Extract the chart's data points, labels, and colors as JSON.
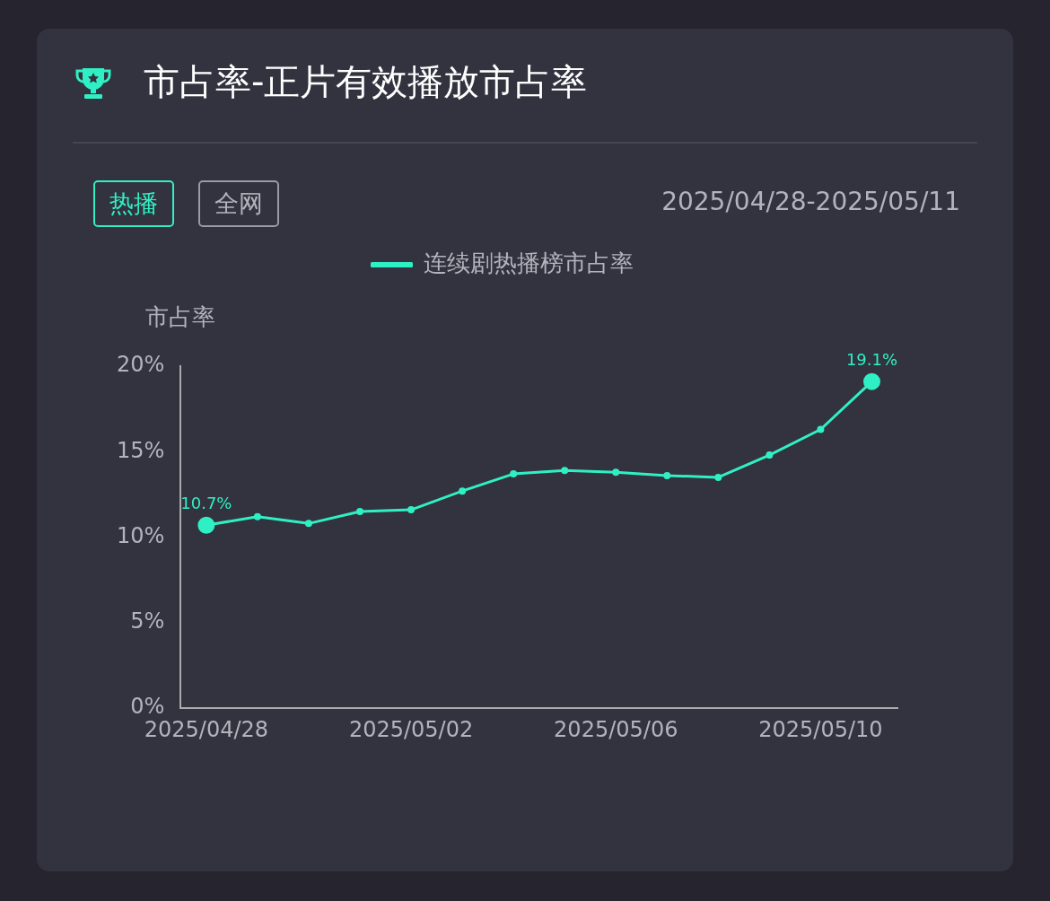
{
  "chart_data": {
    "type": "line",
    "title": "市占率-正片有效播放市占率",
    "ylabel": "市占率",
    "annotations": [
      "热播",
      "全网",
      "2025/04/28-2025/05/11"
    ],
    "categories": [
      "2025/04/28",
      null,
      null,
      null,
      "2025/05/02",
      null,
      null,
      null,
      "2025/05/06",
      null,
      null,
      null,
      "2025/05/10",
      null
    ],
    "series": [
      {
        "name": "连续剧热播榜市占率",
        "color": "#2ff0c4",
        "values": [
          10.7,
          11.2,
          10.8,
          11.5,
          11.6,
          12.7,
          13.7,
          13.9,
          13.8,
          13.6,
          13.5,
          14.8,
          16.3,
          19.1
        ],
        "value_labels": [
          "10.7%",
          null,
          null,
          null,
          null,
          null,
          null,
          null,
          null,
          null,
          null,
          null,
          null,
          "19.1%"
        ]
      }
    ],
    "ylim": [
      0,
      20
    ],
    "yticks": [
      {
        "value": 0,
        "label": "0%"
      },
      {
        "value": 5,
        "label": "5%"
      },
      {
        "value": 10,
        "label": "10%"
      },
      {
        "value": 15,
        "label": "15%"
      },
      {
        "value": 20,
        "label": "20%"
      }
    ],
    "grid": false,
    "legend": "top",
    "marker": "circle",
    "line_style": "solid"
  }
}
